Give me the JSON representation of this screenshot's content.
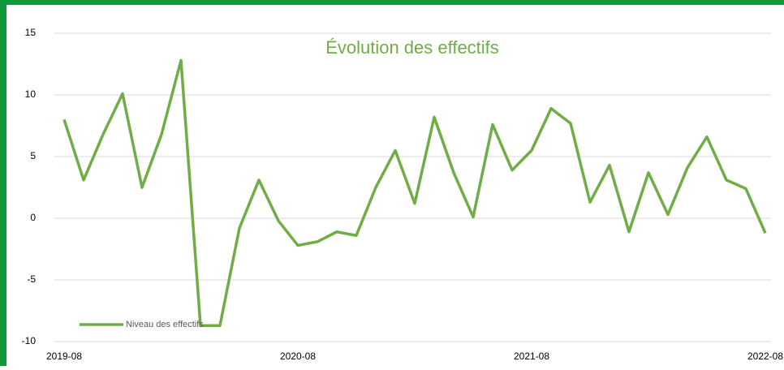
{
  "chart_data": {
    "type": "line",
    "title": "Évolution des effectifs",
    "x": [
      "2019-08",
      "2019-09",
      "2019-10",
      "2019-11",
      "2019-12",
      "2020-01",
      "2020-02",
      "2020-03",
      "2020-04",
      "2020-05",
      "2020-06",
      "2020-07",
      "2020-08",
      "2020-09",
      "2020-10",
      "2020-11",
      "2020-12",
      "2021-01",
      "2021-02",
      "2021-03",
      "2021-04",
      "2021-05",
      "2021-06",
      "2021-07",
      "2021-08",
      "2021-09",
      "2021-10",
      "2021-11",
      "2021-12",
      "2022-01",
      "2022-02",
      "2022-03",
      "2022-04",
      "2022-05",
      "2022-06",
      "2022-07",
      "2022-08"
    ],
    "xticks": [
      "2019-08",
      "2020-08",
      "2021-08",
      "2022-08"
    ],
    "series": [
      {
        "name": "Niveau des effectifs",
        "color": "#70ad47",
        "values": [
          8.0,
          3.1,
          6.8,
          10.1,
          2.5,
          6.8,
          12.8,
          -8.7,
          -8.7,
          -0.8,
          3.1,
          -0.2,
          -2.2,
          -1.9,
          -1.1,
          -1.4,
          2.5,
          5.5,
          1.2,
          8.2,
          3.7,
          0.1,
          7.6,
          3.9,
          5.5,
          8.9,
          7.7,
          1.3,
          4.3,
          -1.1,
          3.7,
          0.3,
          4.1,
          6.6,
          3.1,
          2.4,
          -1.2
        ]
      }
    ],
    "ylim": [
      -10,
      15
    ],
    "yticks": [
      -10,
      -5,
      0,
      5,
      10,
      15
    ],
    "grid": true,
    "legend": "bottom-left",
    "frame_color": "#0e9a3b"
  }
}
